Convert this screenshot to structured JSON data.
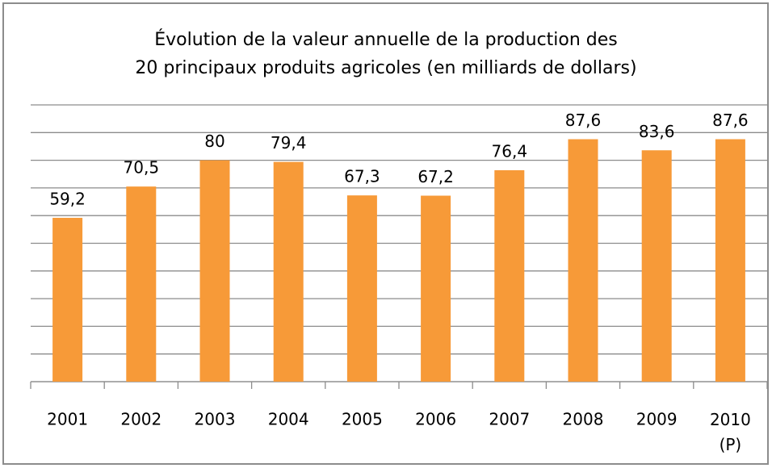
{
  "chart_data": {
    "type": "bar",
    "title": "Évolution de la valeur annuelle de la production des\n20 principaux produits agricoles (en milliards de dollars)",
    "categories": [
      "2001",
      "2002",
      "2003",
      "2004",
      "2005",
      "2006",
      "2007",
      "2008",
      "2009",
      "2010\n(P)"
    ],
    "values": [
      59.2,
      70.5,
      80,
      79.4,
      67.3,
      67.2,
      76.4,
      87.6,
      83.6,
      87.6
    ],
    "value_labels": [
      "59,2",
      "70,5",
      "80",
      "79,4",
      "67,3",
      "67,2",
      "76,4",
      "87,6",
      "83,6",
      "87,6"
    ],
    "color": "#f79a38",
    "ylim": [
      0,
      100
    ],
    "yticks": [
      0,
      10,
      20,
      30,
      40,
      50,
      60,
      70,
      80,
      90,
      100
    ],
    "grid": true
  }
}
